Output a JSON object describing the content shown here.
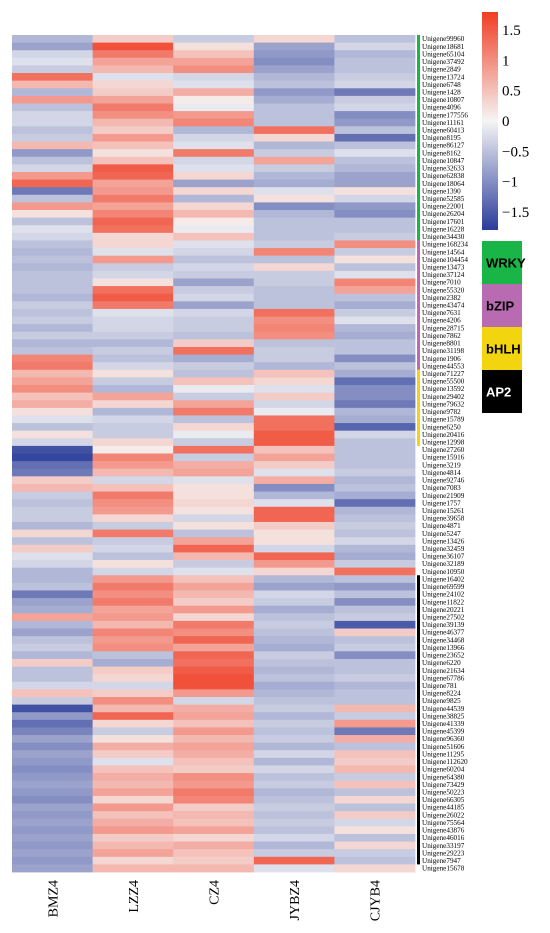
{
  "chart_data": {
    "type": "heatmap",
    "columns": [
      "BMZ4",
      "LZZ4",
      "CZ4",
      "JYBZ4",
      "CJYB4"
    ],
    "rows": [
      "Unigene99960",
      "Unigene18681",
      "Unigene65104",
      "Unigene37492",
      "Unigene2849",
      "Unigene13724",
      "Unigene6748",
      "Unigene1428",
      "Unigene10807",
      "Unigene4096",
      "Unigene177556",
      "Unigene11161",
      "Unigene60413",
      "Unigene8195",
      "Unigene86127",
      "Unigene8162",
      "Unigene10847",
      "Unigene32633",
      "Unigene62838",
      "Unigene18064",
      "Unigene1390",
      "Unigene52585",
      "Unigene22001",
      "Unigene26204",
      "Unigene17601",
      "Unigene16228",
      "Unigene34430",
      "Unigene168234",
      "Unigene14564",
      "Unigene104454",
      "Unigene13473",
      "Unigene37124",
      "Unigene7010",
      "Unigene55320",
      "Unigene2382",
      "Unigene43474",
      "Unigene7631",
      "Unigene4206",
      "Unigene28715",
      "Unigene7862",
      "Unigene8801",
      "Unigene31198",
      "Unigene1906",
      "Unigene44553",
      "Unigene71227",
      "Unigene55500",
      "Unigene13592",
      "Unigene29402",
      "Unigene79632",
      "Unigene9782",
      "Unigene15789",
      "Unigene6250",
      "Unigene20416",
      "Unigene12998",
      "Unigene27260",
      "Unigene15916",
      "Unigene3219",
      "Unigene4814",
      "Unigene92746",
      "Unigene7083",
      "Unigene21909",
      "Unigene1757",
      "Unigene15261",
      "Unigene39658",
      "Unigene4871",
      "Unigene5247",
      "Unigene13426",
      "Unigene32459",
      "Unigene36107",
      "Unigene32189",
      "Unigene10950",
      "Unigene16402",
      "Unigene69599",
      "Unigene24102",
      "Unigene11822",
      "Unigene20221",
      "Unigene27502",
      "Unigene39139",
      "Unigene46377",
      "Unigene34468",
      "Unigene13966",
      "Unigene23652",
      "Unigene6220",
      "Unigene21634",
      "Unigene67786",
      "Unigene781",
      "Unigene8224",
      "Unigene9825",
      "Unigene44539",
      "Unigene38825",
      "Unigene41339",
      "Unigene45399",
      "Unigene96360",
      "Unigene51606",
      "Unigene11295",
      "Unigene112620",
      "Unigene60204",
      "Unigene64380",
      "Unigene73429",
      "Unigene50223",
      "Unigene66305",
      "Unigene44185",
      "Unigene26022",
      "Unigene75564",
      "Unigene43876",
      "Unigene46016",
      "Unigene33197",
      "Unigene29223",
      "Unigene7947",
      "Unigene15678"
    ],
    "values": [
      [
        -0.6,
        0.4,
        -0.4,
        0.3,
        -0.5
      ],
      [
        -0.8,
        1.6,
        0.2,
        -0.8,
        -0.3
      ],
      [
        -0.3,
        1.2,
        0.5,
        -0.9,
        -0.6
      ],
      [
        -0.2,
        0.8,
        0.8,
        -1.0,
        -0.5
      ],
      [
        -0.4,
        0.6,
        1.0,
        -0.8,
        -0.5
      ],
      [
        1.3,
        -0.2,
        -0.3,
        -0.6,
        -0.4
      ],
      [
        0.6,
        0.3,
        -0.2,
        -0.5,
        -0.3
      ],
      [
        -0.6,
        0.4,
        0.7,
        -0.9,
        -1.2
      ],
      [
        0.9,
        0.8,
        0.1,
        -0.7,
        -0.4
      ],
      [
        -0.5,
        1.2,
        -0.1,
        -0.5,
        -0.3
      ],
      [
        -0.3,
        1.0,
        0.9,
        -0.5,
        -1.0
      ],
      [
        -0.3,
        0.6,
        1.1,
        -0.5,
        -0.9
      ],
      [
        -0.5,
        0.4,
        -0.6,
        1.3,
        -0.5
      ],
      [
        -0.4,
        0.9,
        -0.3,
        0.3,
        -1.3
      ],
      [
        0.6,
        0.5,
        -0.2,
        -0.6,
        -0.5
      ],
      [
        -0.9,
        0.2,
        1.2,
        -0.4,
        -0.2
      ],
      [
        -0.5,
        0.5,
        -0.3,
        0.8,
        -0.5
      ],
      [
        -0.3,
        1.5,
        -0.2,
        -0.4,
        -0.6
      ],
      [
        0.9,
        1.4,
        0.3,
        -0.6,
        -0.8
      ],
      [
        1.4,
        0.8,
        -0.8,
        -0.7,
        -0.8
      ],
      [
        -1.2,
        0.9,
        0.3,
        -0.2,
        0.2
      ],
      [
        -0.5,
        1.2,
        -0.6,
        0.2,
        -0.3
      ],
      [
        0.9,
        0.8,
        0.3,
        -1.0,
        -0.9
      ],
      [
        0.2,
        1.1,
        0.6,
        -0.6,
        -1.0
      ],
      [
        -0.5,
        1.4,
        0.1,
        -0.5,
        -0.5
      ],
      [
        -0.2,
        1.3,
        -0.1,
        -0.5,
        -0.5
      ],
      [
        -0.3,
        0.3,
        0.5,
        -0.5,
        -0.4
      ],
      [
        -0.5,
        0.3,
        -0.2,
        -0.4,
        1.0
      ],
      [
        -0.6,
        -0.2,
        -0.3,
        1.1,
        -0.4
      ],
      [
        -0.5,
        0.9,
        -0.5,
        -0.5,
        0.2
      ],
      [
        -0.6,
        -0.4,
        -0.3,
        0.3,
        -0.5
      ],
      [
        -0.5,
        -0.3,
        -0.4,
        -0.4,
        -0.2
      ],
      [
        -0.5,
        0.2,
        -0.8,
        -0.4,
        1.1
      ],
      [
        -0.5,
        1.3,
        -0.4,
        -0.5,
        0.8
      ],
      [
        -0.6,
        1.5,
        -0.3,
        -0.5,
        -0.5
      ],
      [
        -0.4,
        1.2,
        -0.8,
        -0.5,
        -0.7
      ],
      [
        -0.5,
        -0.2,
        -0.3,
        1.3,
        -0.4
      ],
      [
        -0.4,
        -0.3,
        -0.4,
        1.0,
        -0.2
      ],
      [
        -0.6,
        -0.3,
        -0.4,
        1.1,
        -0.6
      ],
      [
        -0.4,
        -0.4,
        -0.5,
        1.0,
        -0.7
      ],
      [
        -0.6,
        -0.6,
        0.4,
        -0.5,
        -0.5
      ],
      [
        -0.5,
        -0.4,
        1.3,
        -0.4,
        -0.5
      ],
      [
        1.1,
        -0.5,
        -0.7,
        -0.4,
        -1.0
      ],
      [
        1.2,
        -0.3,
        -0.4,
        -0.6,
        -0.5
      ],
      [
        0.6,
        0.2,
        -0.5,
        0.5,
        -0.7
      ],
      [
        0.8,
        -0.4,
        0.5,
        0.3,
        -1.3
      ],
      [
        1.0,
        -0.6,
        -0.1,
        -0.2,
        -1.0
      ],
      [
        0.5,
        0.8,
        -0.4,
        0.4,
        -1.0
      ],
      [
        0.7,
        0.3,
        0.8,
        -0.3,
        -1.2
      ],
      [
        0.2,
        -0.6,
        1.2,
        -0.1,
        -0.6
      ],
      [
        -0.2,
        -0.3,
        -0.5,
        1.3,
        -0.7
      ],
      [
        -0.5,
        -0.4,
        0.3,
        1.3,
        -1.4
      ],
      [
        0.2,
        -0.4,
        -0.1,
        1.5,
        -0.3
      ],
      [
        -0.3,
        0.3,
        -0.4,
        1.5,
        -0.5
      ],
      [
        -1.6,
        0.1,
        1.3,
        0.5,
        -0.5
      ],
      [
        -1.7,
        1.1,
        -0.4,
        0.8,
        -0.5
      ],
      [
        -1.3,
        0.9,
        0.7,
        0.4,
        -0.5
      ],
      [
        -1.2,
        0.6,
        0.8,
        -0.2,
        -0.4
      ],
      [
        0.4,
        -0.3,
        -0.2,
        0.7,
        -0.6
      ],
      [
        0.6,
        0.5,
        0.2,
        -1.0,
        -0.5
      ],
      [
        -0.4,
        1.2,
        0.2,
        -0.6,
        -0.7
      ],
      [
        -0.5,
        1.0,
        0.3,
        -0.2,
        -1.3
      ],
      [
        -0.4,
        0.9,
        0.2,
        1.4,
        -0.6
      ],
      [
        -0.4,
        0.3,
        -0.3,
        1.4,
        -0.5
      ],
      [
        -0.6,
        -0.4,
        0.2,
        0.4,
        -0.4
      ],
      [
        0.3,
        1.2,
        -0.5,
        0.2,
        -0.5
      ],
      [
        -0.5,
        -0.4,
        0.8,
        0.2,
        -0.3
      ],
      [
        0.4,
        -0.3,
        1.4,
        -0.3,
        -0.6
      ],
      [
        -0.2,
        -0.5,
        0.6,
        1.4,
        -0.7
      ],
      [
        -0.3,
        0.2,
        -0.4,
        0.9,
        -0.4
      ],
      [
        -0.6,
        -0.3,
        -0.2,
        0.3,
        1.3
      ],
      [
        -0.6,
        0.9,
        0.5,
        -0.6,
        -0.5
      ],
      [
        -0.5,
        1.2,
        0.8,
        -0.8,
        -0.9
      ],
      [
        -1.2,
        1.0,
        0.6,
        -0.3,
        -0.5
      ],
      [
        -0.8,
        1.2,
        0.4,
        -0.4,
        -1.0
      ],
      [
        -0.7,
        0.8,
        0.9,
        -0.7,
        -0.5
      ],
      [
        0.8,
        0.9,
        0.3,
        -0.5,
        -0.4
      ],
      [
        -0.6,
        0.6,
        1.2,
        -0.4,
        -1.5
      ],
      [
        -0.8,
        1.1,
        1.0,
        -0.5,
        0.4
      ],
      [
        -0.5,
        0.9,
        1.4,
        -0.6,
        -0.5
      ],
      [
        -0.4,
        1.0,
        0.8,
        -0.7,
        -0.4
      ],
      [
        -0.6,
        -0.5,
        1.4,
        -0.4,
        -1.0
      ],
      [
        0.4,
        -0.7,
        1.3,
        -0.5,
        -0.5
      ],
      [
        -0.5,
        0.4,
        1.5,
        -0.6,
        -0.5
      ],
      [
        -0.5,
        0.3,
        1.6,
        -0.5,
        -0.4
      ],
      [
        -0.3,
        -0.3,
        1.6,
        -0.7,
        -0.6
      ],
      [
        0.5,
        0.4,
        0.9,
        -0.6,
        -0.5
      ],
      [
        -0.4,
        1.0,
        -0.3,
        -0.5,
        -0.5
      ],
      [
        -1.6,
        0.6,
        0.7,
        -0.4,
        0.6
      ],
      [
        -0.9,
        1.4,
        0.8,
        -0.6,
        -0.4
      ],
      [
        -1.3,
        0.3,
        0.5,
        -0.4,
        0.9
      ],
      [
        -1.1,
        -0.4,
        0.9,
        -0.5,
        -1.2
      ],
      [
        -0.8,
        0.2,
        0.6,
        -0.4,
        0.7
      ],
      [
        -1.0,
        0.7,
        0.8,
        -0.6,
        -0.5
      ],
      [
        -0.8,
        0.4,
        0.7,
        -0.3,
        0.5
      ],
      [
        -0.9,
        -0.2,
        0.5,
        -0.6,
        0.4
      ],
      [
        -1.0,
        0.5,
        0.4,
        -0.3,
        0.6
      ],
      [
        -0.9,
        0.7,
        1.0,
        -0.5,
        -0.4
      ],
      [
        -0.8,
        0.6,
        0.9,
        -0.4,
        0.5
      ],
      [
        -0.9,
        0.8,
        1.2,
        -0.6,
        -0.5
      ],
      [
        -1.0,
        0.3,
        1.1,
        -0.5,
        0.3
      ],
      [
        -0.8,
        0.9,
        0.4,
        -0.4,
        -0.5
      ],
      [
        -0.9,
        0.5,
        0.6,
        -0.5,
        0.4
      ],
      [
        -0.8,
        0.7,
        0.5,
        -0.4,
        -0.3
      ],
      [
        -0.9,
        0.9,
        0.8,
        -0.5,
        0.2
      ],
      [
        -0.8,
        0.4,
        0.3,
        -0.3,
        -0.5
      ],
      [
        -0.9,
        0.6,
        0.7,
        -0.6,
        0.3
      ],
      [
        -0.8,
        0.8,
        0.5,
        -0.4,
        -0.4
      ],
      [
        -0.9,
        0.3,
        0.4,
        1.4,
        -0.5
      ],
      [
        -0.8,
        0.6,
        0.6,
        -0.2,
        0.3
      ]
    ],
    "families": [
      {
        "name": "WRKY",
        "color": "#19b546",
        "start": 0,
        "end": 26
      },
      {
        "name": "bZIP",
        "color": "#b86bb0",
        "start": 27,
        "end": 43
      },
      {
        "name": "bHLH",
        "color": "#f2d40f",
        "start": 44,
        "end": 53
      },
      {
        "name": "AP2",
        "color": "#000000",
        "start": 71,
        "end": 108
      }
    ],
    "color_scale": {
      "min": -1.8,
      "max": 1.8,
      "low": "#2a3c9a",
      "mid": "#f5f5f5",
      "high": "#f03d24"
    },
    "colorbar_ticks": [
      "1.5",
      "1",
      "0.5",
      "0",
      "−0.5",
      "−1",
      "−1.5"
    ],
    "colorbar_tick_values": [
      1.5,
      1,
      0.5,
      0,
      -0.5,
      -1,
      -1.5
    ]
  }
}
